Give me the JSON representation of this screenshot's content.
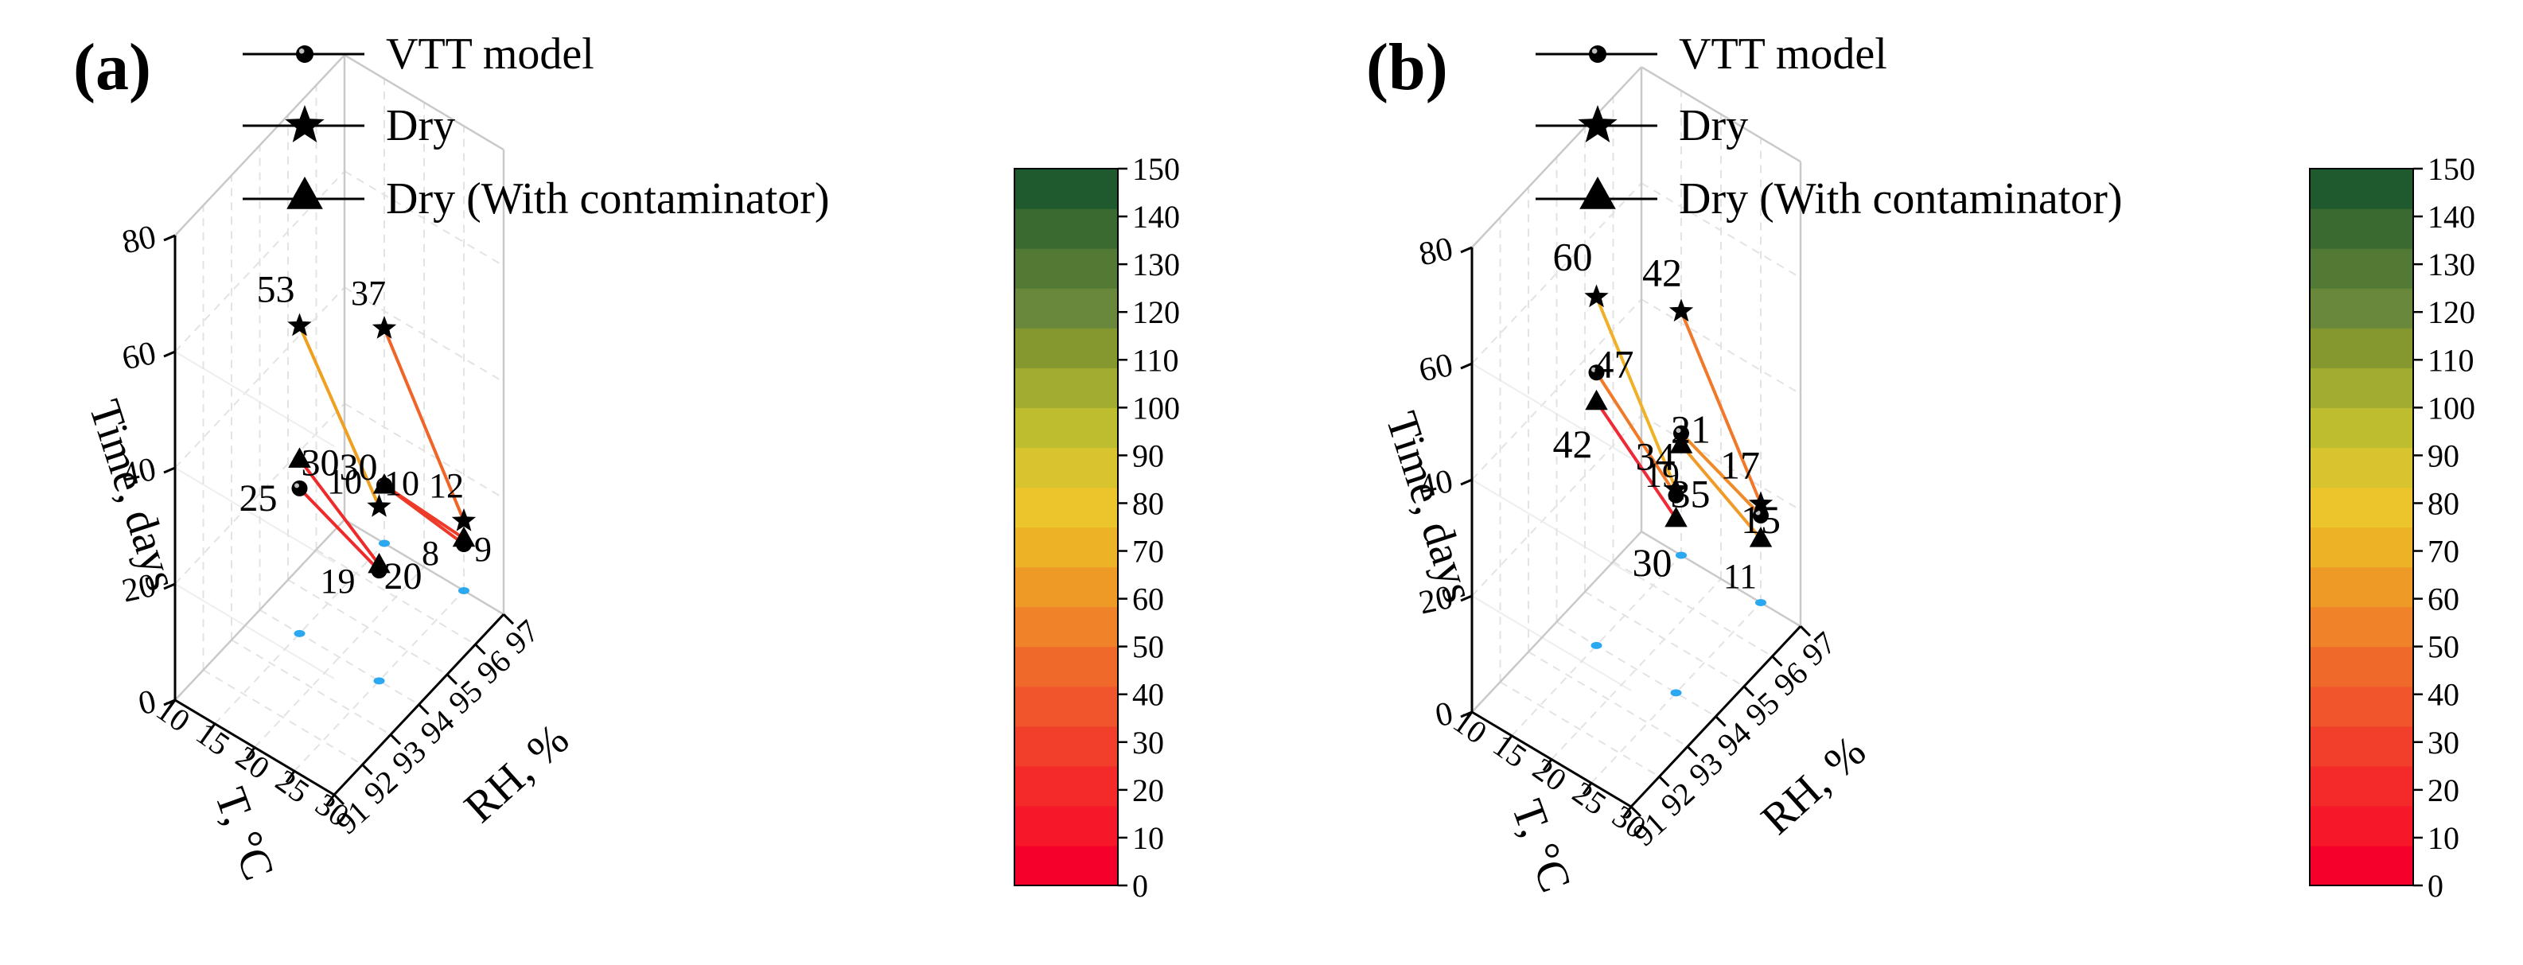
{
  "panels": [
    {
      "label": "(a)",
      "legend": [
        "VTT model",
        "Dry",
        "Dry (With contaminator)"
      ],
      "axis_titles": {
        "time": "Time, days",
        "T": "T, °C",
        "RH": "RH, %"
      },
      "time_ticks": [
        "0",
        "20",
        "40",
        "60",
        "80"
      ],
      "T_ticks": [
        "10",
        "15",
        "20",
        "25",
        "30"
      ],
      "RH_ticks": [
        "91",
        "92",
        "93",
        "94",
        "95",
        "96",
        "97"
      ],
      "colorbar_ticks": [
        "0",
        "10",
        "20",
        "30",
        "40",
        "50",
        "60",
        "70",
        "80",
        "90",
        "100",
        "110",
        "120",
        "130",
        "140",
        "150"
      ]
    },
    {
      "label": "(b)",
      "legend": [
        "VTT model",
        "Dry",
        "Dry (With contaminator)"
      ],
      "axis_titles": {
        "time": "Time, days",
        "T": "T, °C",
        "RH": "RH, %"
      },
      "time_ticks": [
        "0",
        "20",
        "40",
        "60",
        "80"
      ],
      "T_ticks": [
        "10",
        "15",
        "20",
        "25",
        "30"
      ],
      "RH_ticks": [
        "91",
        "92",
        "93",
        "94",
        "95",
        "96",
        "97"
      ],
      "colorbar_ticks": [
        "0",
        "10",
        "20",
        "30",
        "40",
        "50",
        "60",
        "70",
        "80",
        "90",
        "100",
        "110",
        "120",
        "130",
        "140",
        "150"
      ]
    }
  ],
  "colorbar_colors": [
    "#f5002a",
    "#f61828",
    "#f42a2a",
    "#f23f2b",
    "#f0552c",
    "#ef6a2a",
    "#f08229",
    "#ee9a27",
    "#ecb326",
    "#ebc52b",
    "#d7c42e",
    "#bebd2f",
    "#a0ad30",
    "#84982f",
    "#69883c",
    "#527a34",
    "#3a6a30",
    "#1e5a2e"
  ],
  "chart_data": [
    {
      "type": "scatter3d",
      "title": "(a)",
      "xlabel": "T, °C",
      "ylabel": "RH, %",
      "zlabel": "Time, days",
      "xlim": [
        10,
        30
      ],
      "ylim": [
        91,
        97
      ],
      "zlim": [
        0,
        80
      ],
      "colorbar": {
        "range": [
          0,
          150
        ],
        "step": 10
      },
      "series": [
        {
          "name": "VTT model",
          "marker": "sphere",
          "points": [
            {
              "T": 15,
              "RH": 94,
              "days": 25
            },
            {
              "T": 25,
              "RH": 94,
              "days": 19
            },
            {
              "T": 15,
              "RH": 97,
              "days": 10
            },
            {
              "T": 25,
              "RH": 97,
              "days": 8
            }
          ]
        },
        {
          "name": "Dry",
          "marker": "star",
          "points": [
            {
              "T": 15,
              "RH": 94,
              "days": 53
            },
            {
              "T": 25,
              "RH": 94,
              "days": 30
            },
            {
              "T": 15,
              "RH": 97,
              "days": 37
            },
            {
              "T": 25,
              "RH": 97,
              "days": 12
            }
          ]
        },
        {
          "name": "Dry (With contaminator)",
          "marker": "triangle",
          "points": [
            {
              "T": 15,
              "RH": 94,
              "days": 30
            },
            {
              "T": 25,
              "RH": 94,
              "days": 20
            },
            {
              "T": 15,
              "RH": 97,
              "days": 10
            },
            {
              "T": 25,
              "RH": 97,
              "days": 9
            }
          ]
        }
      ],
      "connections": [
        {
          "from": [
            15,
            94,
            53
          ],
          "to": [
            25,
            94,
            30
          ],
          "color": "#f0a020"
        },
        {
          "from": [
            15,
            94,
            25
          ],
          "to": [
            25,
            94,
            19
          ],
          "color": "#ee2a2a"
        },
        {
          "from": [
            15,
            94,
            30
          ],
          "to": [
            25,
            94,
            20
          ],
          "color": "#ee2a2a"
        },
        {
          "from": [
            15,
            97,
            37
          ],
          "to": [
            25,
            97,
            12
          ],
          "color": "#f06428"
        },
        {
          "from": [
            15,
            97,
            10
          ],
          "to": [
            25,
            97,
            8
          ],
          "color": "#ee3a28"
        },
        {
          "from": [
            15,
            97,
            10
          ],
          "to": [
            25,
            97,
            9
          ],
          "color": "#ee3a28"
        }
      ]
    },
    {
      "type": "scatter3d",
      "title": "(b)",
      "xlabel": "T, °C",
      "ylabel": "RH, %",
      "zlabel": "Time, days",
      "xlim": [
        10,
        30
      ],
      "ylim": [
        91,
        97
      ],
      "zlim": [
        0,
        80
      ],
      "colorbar": {
        "range": [
          0,
          150
        ],
        "step": 10
      },
      "series": [
        {
          "name": "VTT model",
          "marker": "sphere",
          "points": [
            {
              "T": 15,
              "RH": 94,
              "days": 47
            },
            {
              "T": 25,
              "RH": 94,
              "days": 34
            },
            {
              "T": 15,
              "RH": 97,
              "days": 21
            },
            {
              "T": 25,
              "RH": 97,
              "days": 15
            }
          ]
        },
        {
          "name": "Dry",
          "marker": "star",
          "points": [
            {
              "T": 15,
              "RH": 94,
              "days": 60
            },
            {
              "T": 25,
              "RH": 94,
              "days": 35
            },
            {
              "T": 15,
              "RH": 97,
              "days": 42
            },
            {
              "T": 25,
              "RH": 97,
              "days": 17
            }
          ]
        },
        {
          "name": "Dry (With contaminator)",
          "marker": "triangle",
          "points": [
            {
              "T": 15,
              "RH": 94,
              "days": 42
            },
            {
              "T": 25,
              "RH": 94,
              "days": 30
            },
            {
              "T": 15,
              "RH": 97,
              "days": 19
            },
            {
              "T": 25,
              "RH": 97,
              "days": 11
            }
          ]
        }
      ],
      "connections": [
        {
          "from": [
            15,
            94,
            60
          ],
          "to": [
            25,
            94,
            35
          ],
          "color": "#f0b028"
        },
        {
          "from": [
            15,
            94,
            47
          ],
          "to": [
            25,
            94,
            34
          ],
          "color": "#f07a28"
        },
        {
          "from": [
            15,
            94,
            42
          ],
          "to": [
            25,
            94,
            30
          ],
          "color": "#ef2a35"
        },
        {
          "from": [
            15,
            97,
            42
          ],
          "to": [
            25,
            97,
            17
          ],
          "color": "#f07828"
        },
        {
          "from": [
            15,
            97,
            21
          ],
          "to": [
            25,
            97,
            15
          ],
          "color": "#f08a28"
        },
        {
          "from": [
            15,
            97,
            19
          ],
          "to": [
            25,
            97,
            11
          ],
          "color": "#f09a28"
        }
      ]
    }
  ]
}
